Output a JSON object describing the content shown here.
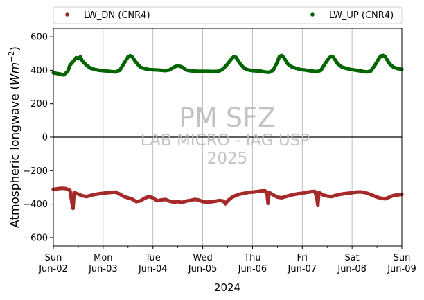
{
  "chart_data": {
    "type": "scatter",
    "title": "",
    "xlabel": "2024",
    "ylabel_prefix": "Atmospheric longwave (",
    "ylabel_unit_base": "W",
    "ylabel_unit_sub": "m",
    "ylabel_unit_exp": "−2",
    "ylabel_suffix": ")",
    "xlim": [
      "2024-06-02 00:00",
      "2024-06-09 00:00"
    ],
    "ylim": [
      -650,
      650
    ],
    "yticks": [
      -600,
      -400,
      -200,
      0,
      200,
      400,
      600
    ],
    "xticks": [
      {
        "date": "2024-06-02",
        "day": "Sun",
        "label": "Jun-02"
      },
      {
        "date": "2024-06-03",
        "day": "Mon",
        "label": "Jun-03"
      },
      {
        "date": "2024-06-04",
        "day": "Tue",
        "label": "Jun-04"
      },
      {
        "date": "2024-06-05",
        "day": "Wed",
        "label": "Jun-05"
      },
      {
        "date": "2024-06-06",
        "day": "Thu",
        "label": "Jun-06"
      },
      {
        "date": "2024-06-07",
        "day": "Fri",
        "label": "Jun-07"
      },
      {
        "date": "2024-06-08",
        "day": "Sat",
        "label": "Jun-08"
      },
      {
        "date": "2024-06-09",
        "day": "Sun",
        "label": "Jun-09"
      }
    ],
    "grid": "vertical",
    "zero_line": true,
    "legend_placement": "top (above plot)",
    "watermark": [
      "PM SFZ",
      "LAB MICRO - IAG USP",
      "2025"
    ],
    "series": [
      {
        "name": "LW_DN (CNR4)",
        "color": "#a52a2a",
        "points": [
          [
            "2024-06-02 00:00",
            -312
          ],
          [
            "2024-06-02 02:00",
            -308
          ],
          [
            "2024-06-02 04:00",
            -305
          ],
          [
            "2024-06-02 06:00",
            -307
          ],
          [
            "2024-06-02 08:00",
            -318
          ],
          [
            "2024-06-02 09:00",
            -395
          ],
          [
            "2024-06-02 09:30",
            -425
          ],
          [
            "2024-06-02 10:00",
            -330
          ],
          [
            "2024-06-02 12:00",
            -340
          ],
          [
            "2024-06-02 14:00",
            -350
          ],
          [
            "2024-06-02 16:00",
            -355
          ],
          [
            "2024-06-02 18:00",
            -348
          ],
          [
            "2024-06-02 20:00",
            -342
          ],
          [
            "2024-06-02 22:00",
            -338
          ],
          [
            "2024-06-03 00:00",
            -335
          ],
          [
            "2024-06-03 02:00",
            -332
          ],
          [
            "2024-06-03 04:00",
            -330
          ],
          [
            "2024-06-03 06:00",
            -328
          ],
          [
            "2024-06-03 08:00",
            -340
          ],
          [
            "2024-06-03 10:00",
            -355
          ],
          [
            "2024-06-03 12:00",
            -362
          ],
          [
            "2024-06-03 14:00",
            -370
          ],
          [
            "2024-06-03 16:00",
            -385
          ],
          [
            "2024-06-03 18:00",
            -380
          ],
          [
            "2024-06-03 20:00",
            -365
          ],
          [
            "2024-06-03 22:00",
            -355
          ],
          [
            "2024-06-04 00:00",
            -362
          ],
          [
            "2024-06-04 02:00",
            -380
          ],
          [
            "2024-06-04 04:00",
            -375
          ],
          [
            "2024-06-04 06:00",
            -372
          ],
          [
            "2024-06-04 08:00",
            -382
          ],
          [
            "2024-06-04 10:00",
            -388
          ],
          [
            "2024-06-04 12:00",
            -385
          ],
          [
            "2024-06-04 14:00",
            -390
          ],
          [
            "2024-06-04 16:00",
            -382
          ],
          [
            "2024-06-04 18:00",
            -378
          ],
          [
            "2024-06-04 20:00",
            -372
          ],
          [
            "2024-06-04 22:00",
            -375
          ],
          [
            "2024-06-05 00:00",
            -385
          ],
          [
            "2024-06-05 02:00",
            -388
          ],
          [
            "2024-06-05 04:00",
            -386
          ],
          [
            "2024-06-05 06:00",
            -383
          ],
          [
            "2024-06-05 08:00",
            -378
          ],
          [
            "2024-06-05 10:00",
            -382
          ],
          [
            "2024-06-05 11:00",
            -398
          ],
          [
            "2024-06-05 12:00",
            -380
          ],
          [
            "2024-06-05 14:00",
            -360
          ],
          [
            "2024-06-05 16:00",
            -348
          ],
          [
            "2024-06-05 18:00",
            -340
          ],
          [
            "2024-06-05 20:00",
            -335
          ],
          [
            "2024-06-05 22:00",
            -330
          ],
          [
            "2024-06-06 00:00",
            -328
          ],
          [
            "2024-06-06 02:00",
            -325
          ],
          [
            "2024-06-06 04:00",
            -322
          ],
          [
            "2024-06-06 06:00",
            -320
          ],
          [
            "2024-06-06 07:00",
            -335
          ],
          [
            "2024-06-06 07:30",
            -395
          ],
          [
            "2024-06-06 08:00",
            -330
          ],
          [
            "2024-06-06 10:00",
            -345
          ],
          [
            "2024-06-06 12:00",
            -358
          ],
          [
            "2024-06-06 14:00",
            -362
          ],
          [
            "2024-06-06 16:00",
            -355
          ],
          [
            "2024-06-06 18:00",
            -348
          ],
          [
            "2024-06-06 20:00",
            -342
          ],
          [
            "2024-06-06 22:00",
            -338
          ],
          [
            "2024-06-07 00:00",
            -335
          ],
          [
            "2024-06-07 02:00",
            -330
          ],
          [
            "2024-06-07 04:00",
            -326
          ],
          [
            "2024-06-07 06:00",
            -324
          ],
          [
            "2024-06-07 07:00",
            -360
          ],
          [
            "2024-06-07 07:30",
            -408
          ],
          [
            "2024-06-07 08:00",
            -330
          ],
          [
            "2024-06-07 10:00",
            -345
          ],
          [
            "2024-06-07 12:00",
            -352
          ],
          [
            "2024-06-07 14:00",
            -355
          ],
          [
            "2024-06-07 16:00",
            -348
          ],
          [
            "2024-06-07 18:00",
            -342
          ],
          [
            "2024-06-07 20:00",
            -338
          ],
          [
            "2024-06-07 22:00",
            -335
          ],
          [
            "2024-06-08 00:00",
            -332
          ],
          [
            "2024-06-08 02:00",
            -328
          ],
          [
            "2024-06-08 04:00",
            -327
          ],
          [
            "2024-06-08 06:00",
            -330
          ],
          [
            "2024-06-08 08:00",
            -338
          ],
          [
            "2024-06-08 10:00",
            -348
          ],
          [
            "2024-06-08 12:00",
            -358
          ],
          [
            "2024-06-08 14:00",
            -365
          ],
          [
            "2024-06-08 16:00",
            -368
          ],
          [
            "2024-06-08 18:00",
            -358
          ],
          [
            "2024-06-08 20:00",
            -348
          ],
          [
            "2024-06-08 22:00",
            -345
          ],
          [
            "2024-06-09 00:00",
            -342
          ]
        ]
      },
      {
        "name": "LW_UP (CNR4)",
        "color": "#006400",
        "points": [
          [
            "2024-06-02 00:00",
            385
          ],
          [
            "2024-06-02 02:00",
            380
          ],
          [
            "2024-06-02 04:00",
            376
          ],
          [
            "2024-06-02 05:00",
            372
          ],
          [
            "2024-06-02 07:00",
            395
          ],
          [
            "2024-06-02 08:00",
            430
          ],
          [
            "2024-06-02 10:00",
            460
          ],
          [
            "2024-06-02 11:00",
            475
          ],
          [
            "2024-06-02 12:00",
            468
          ],
          [
            "2024-06-02 13:00",
            480
          ],
          [
            "2024-06-02 14:00",
            455
          ],
          [
            "2024-06-02 16:00",
            430
          ],
          [
            "2024-06-02 18:00",
            412
          ],
          [
            "2024-06-02 20:00",
            405
          ],
          [
            "2024-06-02 22:00",
            400
          ],
          [
            "2024-06-03 00:00",
            398
          ],
          [
            "2024-06-03 02:00",
            395
          ],
          [
            "2024-06-03 04:00",
            392
          ],
          [
            "2024-06-03 06:00",
            390
          ],
          [
            "2024-06-03 08:00",
            400
          ],
          [
            "2024-06-03 10:00",
            440
          ],
          [
            "2024-06-03 12:00",
            480
          ],
          [
            "2024-06-03 13:00",
            487
          ],
          [
            "2024-06-03 14:00",
            480
          ],
          [
            "2024-06-03 16:00",
            445
          ],
          [
            "2024-06-03 18:00",
            418
          ],
          [
            "2024-06-03 20:00",
            410
          ],
          [
            "2024-06-03 22:00",
            405
          ],
          [
            "2024-06-04 00:00",
            403
          ],
          [
            "2024-06-04 02:00",
            402
          ],
          [
            "2024-06-04 04:00",
            400
          ],
          [
            "2024-06-04 06:00",
            398
          ],
          [
            "2024-06-04 08:00",
            402
          ],
          [
            "2024-06-04 10:00",
            418
          ],
          [
            "2024-06-04 12:00",
            428
          ],
          [
            "2024-06-04 14:00",
            420
          ],
          [
            "2024-06-04 16:00",
            402
          ],
          [
            "2024-06-04 18:00",
            397
          ],
          [
            "2024-06-04 20:00",
            395
          ],
          [
            "2024-06-04 22:00",
            394
          ],
          [
            "2024-06-05 00:00",
            394
          ],
          [
            "2024-06-05 02:00",
            394
          ],
          [
            "2024-06-05 04:00",
            393
          ],
          [
            "2024-06-05 06:00",
            393
          ],
          [
            "2024-06-05 08:00",
            395
          ],
          [
            "2024-06-05 10:00",
            410
          ],
          [
            "2024-06-05 12:00",
            438
          ],
          [
            "2024-06-05 14:00",
            470
          ],
          [
            "2024-06-05 15:00",
            482
          ],
          [
            "2024-06-05 16:00",
            478
          ],
          [
            "2024-06-05 18:00",
            440
          ],
          [
            "2024-06-05 20:00",
            412
          ],
          [
            "2024-06-05 22:00",
            402
          ],
          [
            "2024-06-06 00:00",
            398
          ],
          [
            "2024-06-06 02:00",
            396
          ],
          [
            "2024-06-06 04:00",
            395
          ],
          [
            "2024-06-06 06:00",
            390
          ],
          [
            "2024-06-06 08:00",
            388
          ],
          [
            "2024-06-06 10:00",
            400
          ],
          [
            "2024-06-06 12:00",
            450
          ],
          [
            "2024-06-06 13:00",
            482
          ],
          [
            "2024-06-06 14:00",
            488
          ],
          [
            "2024-06-06 15:00",
            478
          ],
          [
            "2024-06-06 17:00",
            438
          ],
          [
            "2024-06-06 19:00",
            420
          ],
          [
            "2024-06-06 21:00",
            412
          ],
          [
            "2024-06-06 23:00",
            405
          ],
          [
            "2024-06-07 01:00",
            402
          ],
          [
            "2024-06-07 03:00",
            398
          ],
          [
            "2024-06-07 05:00",
            395
          ],
          [
            "2024-06-07 07:00",
            392
          ],
          [
            "2024-06-07 09:00",
            400
          ],
          [
            "2024-06-07 11:00",
            440
          ],
          [
            "2024-06-07 13:00",
            475
          ],
          [
            "2024-06-07 14:00",
            483
          ],
          [
            "2024-06-07 15:00",
            478
          ],
          [
            "2024-06-07 17:00",
            440
          ],
          [
            "2024-06-07 19:00",
            420
          ],
          [
            "2024-06-07 21:00",
            412
          ],
          [
            "2024-06-07 23:00",
            406
          ],
          [
            "2024-06-08 01:00",
            402
          ],
          [
            "2024-06-08 03:00",
            398
          ],
          [
            "2024-06-08 05:00",
            394
          ],
          [
            "2024-06-08 07:00",
            390
          ],
          [
            "2024-06-08 09:00",
            395
          ],
          [
            "2024-06-08 11:00",
            430
          ],
          [
            "2024-06-08 13:00",
            472
          ],
          [
            "2024-06-08 14:00",
            486
          ],
          [
            "2024-06-08 15:00",
            488
          ],
          [
            "2024-06-08 16:00",
            480
          ],
          [
            "2024-06-08 18:00",
            440
          ],
          [
            "2024-06-08 20:00",
            418
          ],
          [
            "2024-06-08 22:00",
            410
          ],
          [
            "2024-06-09 00:00",
            406
          ]
        ]
      }
    ]
  }
}
